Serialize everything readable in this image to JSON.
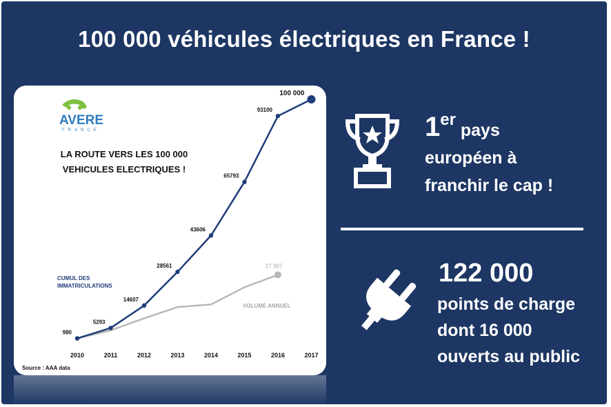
{
  "slide": {
    "title": "100 000 véhicules électriques en France !"
  },
  "card": {
    "logo_text": "AVERE",
    "logo_subtext": "FRANCE",
    "heading_line1": "LA ROUTE VERS LES 100 000",
    "heading_line2": "VEHICULES ELECTRIQUES !",
    "source": "Source : AAA data"
  },
  "chart_data": {
    "type": "line",
    "x": [
      "2010",
      "2011",
      "2012",
      "2013",
      "2014",
      "2015",
      "2016",
      "2017"
    ],
    "series": [
      {
        "name": "CUMUL DES IMMATRICULATIONS",
        "name_line1": "CUMUL DES",
        "name_line2": "IMMATRICULATIONS",
        "color": "#1f3c78",
        "values": [
          980,
          5293,
          14607,
          28561,
          43606,
          65793,
          93100,
          100000
        ],
        "labels": [
          "980",
          "5293",
          "14607",
          "28561",
          "43606",
          "65793",
          "93100",
          "100 000"
        ]
      },
      {
        "name": "VOLUME ANNUEL",
        "color": "#b8b8b8",
        "x": [
          "2010",
          "2011",
          "2012",
          "2013",
          "2014",
          "2015",
          "2016"
        ],
        "values": [
          980,
          4313,
          9314,
          13954,
          15045,
          22187,
          27307
        ],
        "labels": [
          "",
          "",
          "",
          "",
          "",
          "",
          "27 307"
        ]
      }
    ],
    "ylim": [
      0,
      100000
    ],
    "grid": false,
    "legend": "inline"
  },
  "right": {
    "rank_number": "1",
    "rank_sup": "er",
    "rank_line1_rest": " pays",
    "rank_line2": "européen à",
    "rank_line3": "franchir le cap !",
    "charge_number": "122 000",
    "charge_line1": "points de charge",
    "charge_line2": "dont 16 000",
    "charge_line3": "ouverts au public",
    "icons": [
      "trophy-icon",
      "plug-icon"
    ]
  }
}
